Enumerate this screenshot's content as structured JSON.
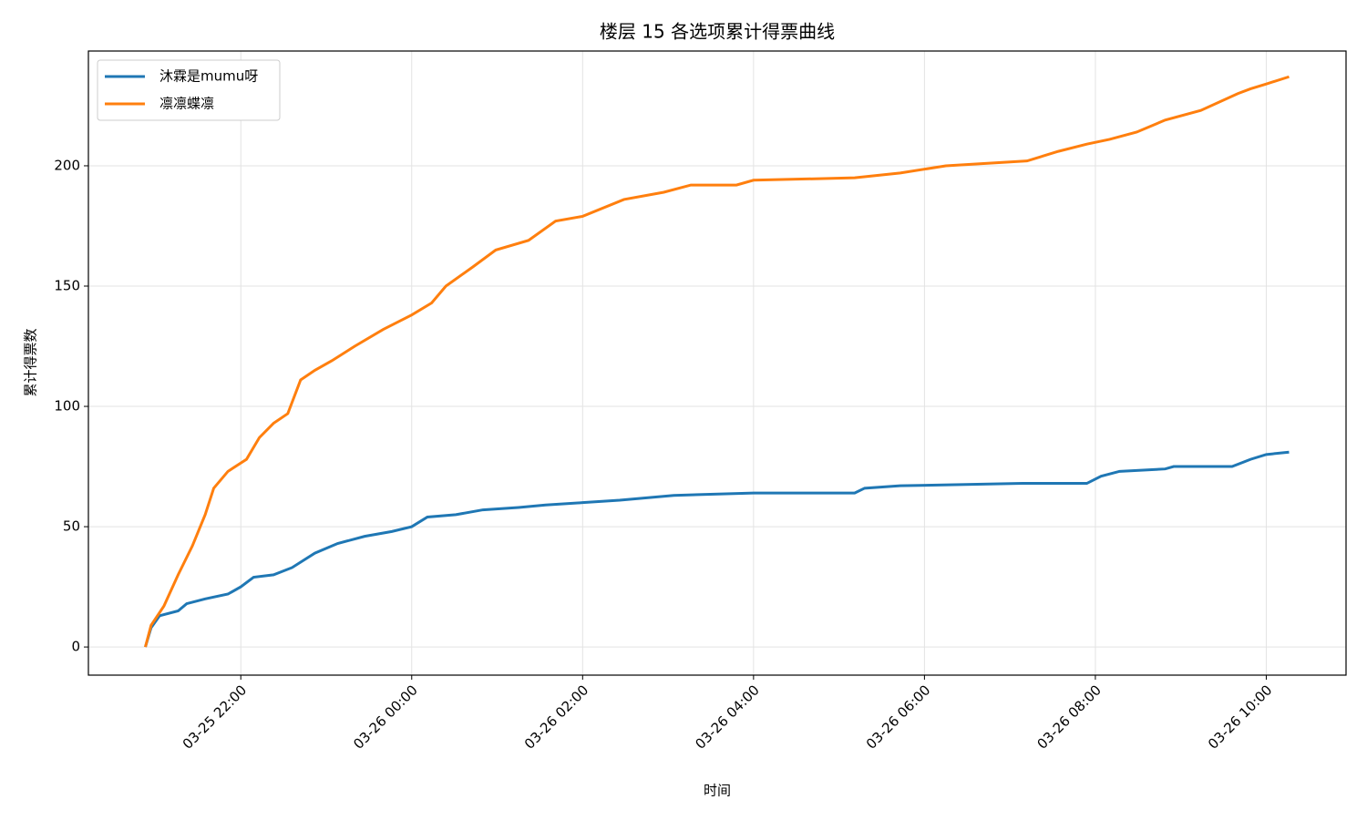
{
  "chart_data": {
    "type": "line",
    "title": "楼层 15 各选项累计得票曲线",
    "x_label": "时间",
    "y_label": "累计得票数",
    "xlim": [
      "03-25 20:13",
      "03-26 10:56"
    ],
    "xticks": [
      "03-25 22:00",
      "03-26 00:00",
      "03-26 02:00",
      "03-26 04:00",
      "03-26 06:00",
      "03-26 08:00",
      "03-26 10:00"
    ],
    "ylim": [
      -11.7,
      247.7
    ],
    "yticks": [
      0,
      50,
      100,
      150,
      200
    ],
    "grid": true,
    "legend": "upper left",
    "series": [
      {
        "name": "沐霖是mumu呀",
        "color": "#1f77b4",
        "x": [
          "03-25 20:53",
          "03-25 20:57",
          "03-25 21:03",
          "03-25 21:16",
          "03-25 21:22",
          "03-25 21:35",
          "03-25 21:51",
          "03-25 22:00",
          "03-25 22:09",
          "03-25 22:23",
          "03-25 22:36",
          "03-25 22:52",
          "03-25 23:08",
          "03-25 23:27",
          "03-25 23:46",
          "03-26 00:00",
          "03-26 00:11",
          "03-26 00:31",
          "03-26 00:50",
          "03-26 01:15",
          "03-26 01:34",
          "03-26 02:00",
          "03-26 02:26",
          "03-26 03:04",
          "03-26 04:00",
          "03-26 05:11",
          "03-26 05:18",
          "03-26 05:43",
          "03-26 07:09",
          "03-26 07:54",
          "03-26 08:04",
          "03-26 08:17",
          "03-26 08:49",
          "03-26 08:55",
          "03-26 09:36",
          "03-26 09:49",
          "03-26 10:00",
          "03-26 10:16"
        ],
        "values": [
          0,
          8,
          13,
          15,
          18,
          20,
          22,
          25,
          29,
          30,
          33,
          39,
          43,
          46,
          48,
          50,
          54,
          55,
          57,
          58,
          59,
          60,
          61,
          63,
          64,
          64,
          66,
          67,
          68,
          68,
          71,
          73,
          74,
          75,
          75,
          78,
          80,
          81
        ]
      },
      {
        "name": "凛凛蝶凛",
        "color": "#ff7f0e",
        "x": [
          "03-25 20:53",
          "03-25 20:57",
          "03-25 21:06",
          "03-25 21:16",
          "03-25 21:26",
          "03-25 21:35",
          "03-25 21:41",
          "03-25 21:51",
          "03-25 22:04",
          "03-25 22:13",
          "03-25 22:23",
          "03-25 22:33",
          "03-25 22:42",
          "03-25 22:52",
          "03-25 23:04",
          "03-25 23:20",
          "03-25 23:40",
          "03-26 00:00",
          "03-26 00:14",
          "03-26 00:24",
          "03-26 00:43",
          "03-26 00:59",
          "03-26 01:22",
          "03-26 01:41",
          "03-26 02:00",
          "03-26 02:29",
          "03-26 02:57",
          "03-26 03:16",
          "03-26 03:48",
          "03-26 04:00",
          "03-26 05:11",
          "03-26 05:43",
          "03-26 06:15",
          "03-26 07:12",
          "03-26 07:34",
          "03-26 07:54",
          "03-26 08:10",
          "03-26 08:29",
          "03-26 08:49",
          "03-26 09:14",
          "03-26 09:40",
          "03-26 09:49",
          "03-26 10:00",
          "03-26 10:16"
        ],
        "values": [
          0,
          9,
          17,
          30,
          42,
          55,
          66,
          73,
          78,
          87,
          93,
          97,
          111,
          115,
          119,
          125,
          132,
          138,
          143,
          150,
          158,
          165,
          169,
          177,
          179,
          186,
          189,
          192,
          192,
          194,
          195,
          197,
          200,
          202,
          206,
          209,
          211,
          214,
          219,
          223,
          230,
          232,
          234,
          237
        ]
      }
    ]
  }
}
